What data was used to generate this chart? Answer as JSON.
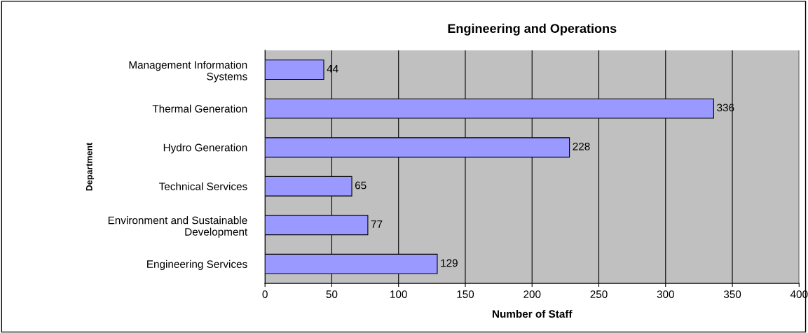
{
  "chart_data": {
    "type": "bar",
    "orientation": "horizontal",
    "title": "Engineering and Operations",
    "xlabel": "Number of Staff",
    "ylabel": "Department",
    "categories": [
      "Management Information\nSystems",
      "Thermal Generation",
      "Hydro Generation",
      "Technical Services",
      "Environment and Sustainable\nDevelopment",
      "Engineering Services"
    ],
    "values": [
      44,
      336,
      228,
      65,
      77,
      129
    ],
    "color": "#9999ff",
    "xlim": [
      0,
      400
    ],
    "xticks": [
      0,
      50,
      100,
      150,
      200,
      250,
      300,
      350,
      400
    ],
    "grid": "x",
    "data_labels": true,
    "legend": false
  }
}
